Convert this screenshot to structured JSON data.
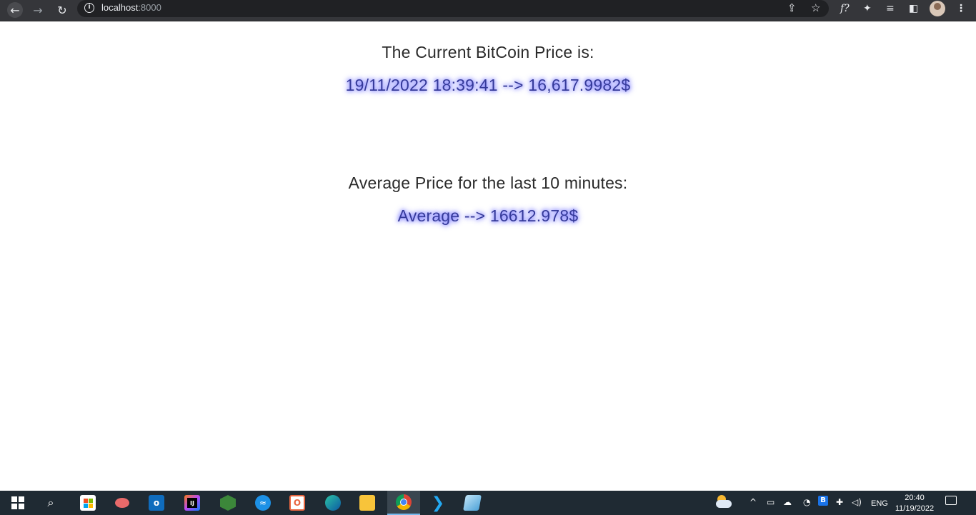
{
  "browser": {
    "url_host": "localhost",
    "url_port": ":8000",
    "icons": {
      "back": "arrow-left-icon",
      "forward": "arrow-right-icon",
      "reload": "reload-icon",
      "info": "info-icon",
      "share": "share-icon",
      "bookmark": "star-icon",
      "extension_fx": "fx-extension-icon",
      "extensions": "puzzle-icon",
      "media": "media-control-icon",
      "side_panel": "side-panel-icon",
      "profile": "profile-avatar",
      "menu": "kebab-menu-icon"
    },
    "extension_fx_label": "f?"
  },
  "page": {
    "current_heading": "The Current BitCoin Price is:",
    "current_value": "19/11/2022 18:39:41 --> 16,617.9982$",
    "average_heading": "Average Price for the last 10 minutes:",
    "average_value": "Average --> 16612.978$"
  },
  "colors": {
    "heading_text": "#2b2b2b",
    "value_text": "#353a9a",
    "value_glow": "#5b5bff",
    "chrome_bg": "#35363a",
    "taskbar_bg": "#1f2a33"
  },
  "taskbar": {
    "apps": [
      "start-icon",
      "search-icon",
      "microsoft-store-icon",
      "snipping-tool-icon",
      "outlook-icon",
      "intellij-icon",
      "nodejs-icon",
      "docker-icon",
      "office-icon",
      "edge-icon",
      "file-explorer-icon",
      "chrome-icon",
      "vscode-icon",
      "notepad-icon"
    ],
    "tray": {
      "language": "ENG",
      "time": "20:40",
      "date": "11/19/2022"
    }
  }
}
